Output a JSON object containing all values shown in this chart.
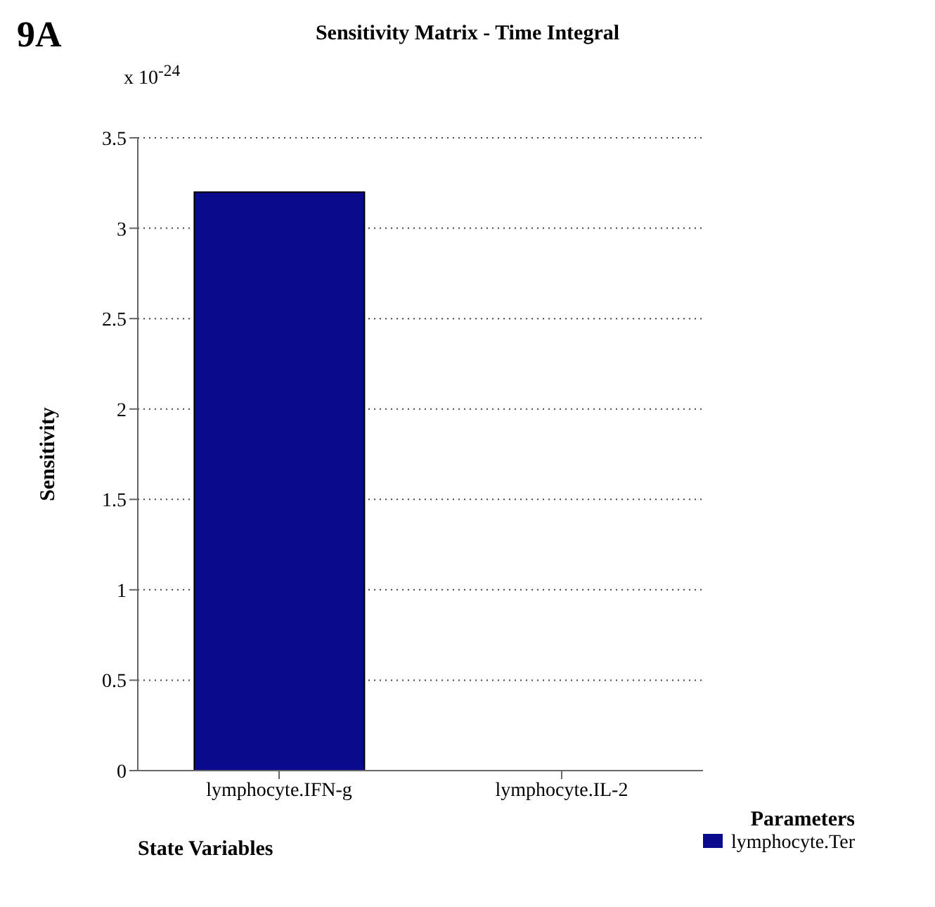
{
  "chart_data": {
    "type": "bar",
    "title": "Sensitivity Matrix - Time Integral",
    "xlabel": "State Variables",
    "ylabel": "Sensitivity",
    "legend_title": "Parameters",
    "annotations": [
      "9A",
      "x 10$^{-24}$"
    ],
    "categories": [
      "lymphocyte.IFN-g",
      "lymphocyte.IL-2"
    ],
    "series": [
      {
        "name": "lymphocyte.Ter",
        "color": "#0a0a8c",
        "values": [
          3.2,
          0
        ]
      }
    ],
    "ylim": [
      0,
      3.5
    ],
    "yticks": [
      0,
      0.5,
      1,
      1.5,
      2,
      2.5,
      3,
      3.5
    ],
    "grid": "y",
    "legend": "bottom right"
  }
}
